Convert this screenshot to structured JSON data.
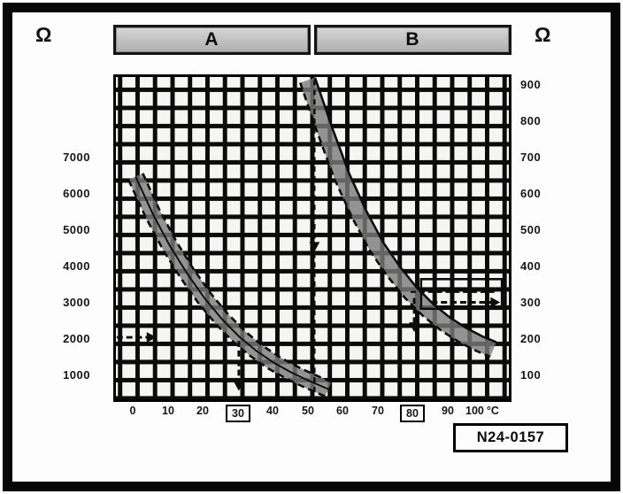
{
  "figure": {
    "left_axis_unit": "Ω",
    "right_axis_unit": "Ω",
    "columns": [
      "A",
      "B"
    ],
    "id_label": "N24-0157"
  },
  "axes": {
    "left_ticks": [
      "7000",
      "6000",
      "5000",
      "4000",
      "3000",
      "2000",
      "1000"
    ],
    "right_ticks": [
      "900",
      "800",
      "700",
      "600",
      "500",
      "400",
      "300",
      "200",
      "100"
    ],
    "x_ticks": [
      "0",
      "10",
      "20",
      "30",
      "40",
      "50",
      "60",
      "70",
      "80",
      "90",
      "100"
    ],
    "x_unit_suffix": "°C",
    "x_boxed_values": [
      "30",
      "80"
    ]
  },
  "chart_data": {
    "type": "line",
    "title": "",
    "xlabel": "°C",
    "ylabel_left": "Ω",
    "ylabel_right": "Ω",
    "x_range": [
      0,
      100
    ],
    "left_axis_ticks": [
      1000,
      2000,
      3000,
      4000,
      5000,
      6000,
      7000
    ],
    "right_axis_ticks": [
      100,
      200,
      300,
      400,
      500,
      600,
      700,
      800,
      900
    ],
    "grid": true,
    "series": [
      {
        "name": "A",
        "axis": "left",
        "x": [
          0,
          5,
          10,
          15,
          20,
          25,
          30,
          35,
          40,
          45,
          50,
          56
        ],
        "values": [
          6500,
          5450,
          4550,
          3780,
          3100,
          2520,
          2030,
          1630,
          1300,
          1030,
          800,
          550
        ],
        "edge_style": {
          "upper": "dashed",
          "lower": "dashed",
          "center": "solid"
        }
      },
      {
        "name": "B",
        "axis": "right",
        "x": [
          50,
          55,
          60,
          65,
          70,
          75,
          80,
          85,
          90,
          95,
          100,
          104
        ],
        "values": [
          920,
          780,
          650,
          545,
          455,
          385,
          325,
          277,
          238,
          207,
          182,
          166
        ],
        "edge_style": {
          "upper": "solid",
          "lower": "dashed",
          "center": "none"
        }
      }
    ],
    "indicated_readings": [
      {
        "temperature_c": 30,
        "series": "A",
        "resistance_ohm_approx": 2000
      },
      {
        "temperature_c": 80,
        "series": "B",
        "resistance_ohm_approx": 300
      }
    ],
    "annotations": [
      {
        "kind": "arrow-right",
        "v": 200,
        "t1": -5.5,
        "t2": 6,
        "note": "read ~2000 Ω on left scale"
      },
      {
        "kind": "arrow-down",
        "t": 30,
        "v1": 190,
        "v2": 50,
        "note": "down to 30 °C"
      },
      {
        "kind": "vline-dashed-arrow",
        "t": 52,
        "v1": 920,
        "v2": 40,
        "arrow_v": 440,
        "note": "reference line ~50 °C"
      },
      {
        "kind": "arrow-down",
        "t": 81,
        "v1": 310,
        "v2": 215,
        "note": "down toward 80 °C"
      },
      {
        "kind": "hline-dashed",
        "v": 327,
        "t1": 80,
        "t2": 105,
        "note": ""
      },
      {
        "kind": "arrow-right",
        "v": 298,
        "t1": 86,
        "t2": 106,
        "note": "read ~300 Ω on right scale"
      },
      {
        "kind": "rect",
        "t1": 83,
        "t2": 106.5,
        "v1": 363,
        "v2": 280,
        "note": "reading window"
      }
    ]
  }
}
